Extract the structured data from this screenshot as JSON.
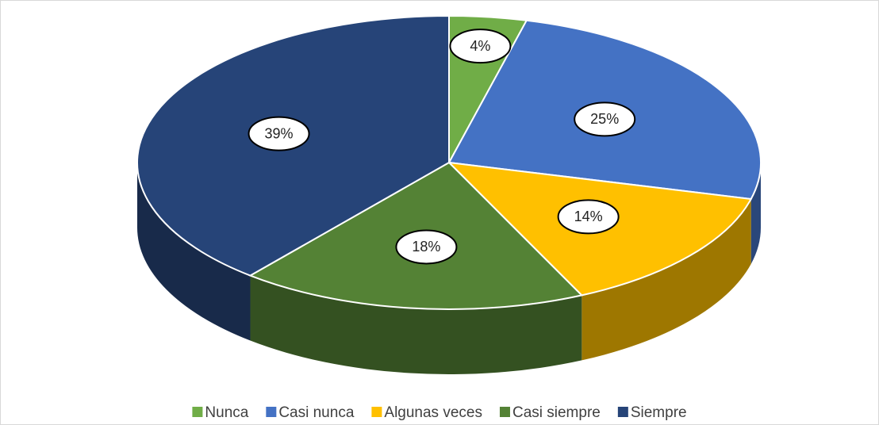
{
  "chart_data": {
    "type": "pie3d",
    "categories": [
      "Nunca",
      "Casi nunca",
      "Algunas veces",
      "Casi siempre",
      "Siempre"
    ],
    "values": [
      4,
      25,
      14,
      18,
      39
    ],
    "value_labels": [
      "4%",
      "25%",
      "14%",
      "18%",
      "39%"
    ],
    "colors": [
      "#70ad47",
      "#4472c4",
      "#ffc000",
      "#548235",
      "#264478"
    ],
    "legend": "bottom"
  }
}
